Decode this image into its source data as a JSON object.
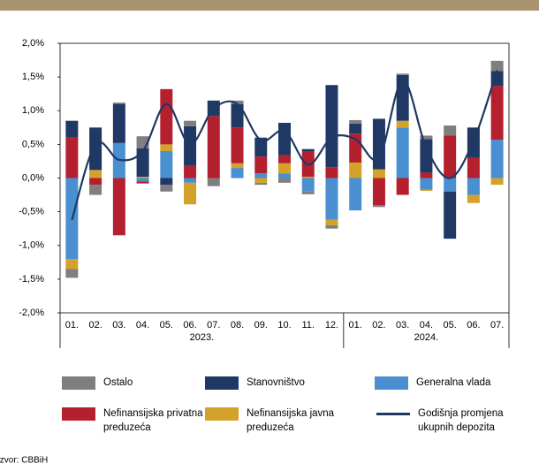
{
  "chart_data": {
    "type": "stacked-bar-line",
    "groups": [
      {
        "label": "2023.",
        "categories": [
          "01.",
          "02.",
          "03.",
          "04.",
          "05.",
          "06.",
          "07.",
          "08.",
          "09.",
          "10.",
          "11.",
          "12."
        ]
      },
      {
        "label": "2024.",
        "categories": [
          "01.",
          "02.",
          "03.",
          "04.",
          "05.",
          "06.",
          "07."
        ]
      }
    ],
    "series": [
      {
        "name": "Ostalo",
        "color": "#7f7f7f",
        "values": [
          -0.13,
          -0.15,
          0.02,
          0.18,
          -0.1,
          0.08,
          -0.12,
          0.05,
          -0.03,
          -0.07,
          -0.04,
          -0.05,
          0.05,
          -0.03,
          0.02,
          0.05,
          0.15,
          0,
          0.15
        ]
      },
      {
        "name": "Stanovništvo",
        "color": "#1f3864",
        "values": [
          0.25,
          0.63,
          0.58,
          0.42,
          -0.1,
          0.59,
          0.23,
          0.35,
          0.28,
          0.48,
          0.03,
          1.22,
          0.15,
          0.75,
          0.68,
          0.5,
          -0.7,
          0.45,
          0.22
        ]
      },
      {
        "name": "Generalna vlada",
        "color": "#4a8fd0",
        "values": [
          -1.2,
          0,
          0.52,
          -0.05,
          0.4,
          -0.07,
          0,
          0.15,
          0.07,
          0.07,
          -0.2,
          -0.62,
          -0.48,
          0,
          0.75,
          -0.17,
          -0.2,
          -0.25,
          0.57
        ]
      },
      {
        "name": "Nefinansijska privatna preduzeća",
        "color": "#b5202e",
        "values": [
          0.6,
          -0.1,
          -0.85,
          -0.03,
          0.82,
          0.18,
          0.92,
          0.53,
          0.25,
          0.12,
          0.38,
          0.16,
          0.43,
          -0.4,
          -0.25,
          0.08,
          0.63,
          0.3,
          0.8
        ]
      },
      {
        "name": "Nefinansijska javna preduzeća",
        "color": "#d4a22a",
        "values": [
          -0.15,
          0.12,
          0,
          0.02,
          0.1,
          -0.32,
          0,
          0.07,
          -0.07,
          0.15,
          0.02,
          -0.08,
          0.23,
          0.13,
          0.1,
          -0.02,
          0,
          -0.12,
          -0.1
        ]
      }
    ],
    "line": {
      "name": "Godišnja promjena ukupnih depozita",
      "color": "#1f3864",
      "values": [
        -0.62,
        0.5,
        0.27,
        0.4,
        1.1,
        0.5,
        1.03,
        1.1,
        0.56,
        0.7,
        0.2,
        0.6,
        0.58,
        0.3,
        1.45,
        0.45,
        0.0,
        0.55,
        1.6
      ]
    },
    "ylim": [
      -2,
      2
    ],
    "yticks": [
      {
        "value": -2,
        "label": "-2,0%"
      },
      {
        "value": -1.5,
        "label": "-1,5%"
      },
      {
        "value": -1,
        "label": "-1,0%"
      },
      {
        "value": -0.5,
        "label": "-0,5%"
      },
      {
        "value": 0,
        "label": "0,0%"
      },
      {
        "value": 0.5,
        "label": "0,5%"
      },
      {
        "value": 1,
        "label": "1,0%"
      },
      {
        "value": 1.5,
        "label": "1,5%"
      },
      {
        "value": 2,
        "label": "2,0%"
      }
    ],
    "source": "Izvor: CBBiH"
  }
}
